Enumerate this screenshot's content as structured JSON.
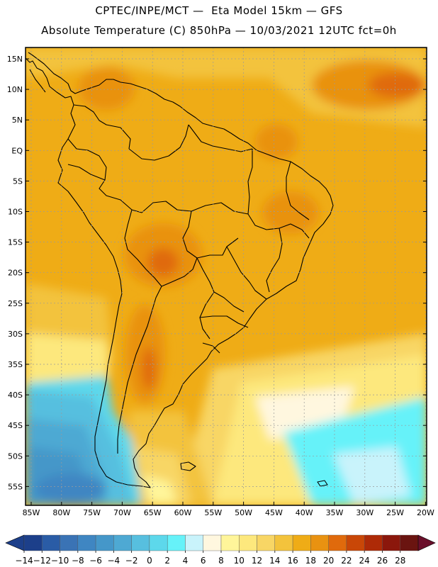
{
  "header": {
    "title_line1": "CPTEC/INPE/MCT —  Eta Model 15km — GFS",
    "title_line2": "Absolute Temperature (C) 850hPa — 10/03/2021 12UTC fct=0h"
  },
  "map": {
    "lat_labels": [
      "15N",
      "10N",
      "5N",
      "EQ",
      "5S",
      "10S",
      "15S",
      "20S",
      "25S",
      "30S",
      "35S",
      "40S",
      "45S",
      "50S",
      "55S"
    ],
    "lon_labels": [
      "85W",
      "80W",
      "75W",
      "70W",
      "65W",
      "60W",
      "55W",
      "50W",
      "45W",
      "40W",
      "35W",
      "30W",
      "25W",
      "20W"
    ]
  },
  "colorbar": {
    "labels": [
      "-14",
      "-12",
      "-10",
      "-8",
      "-6",
      "-4",
      "-2",
      "0",
      "2",
      "4",
      "6",
      "8",
      "10",
      "12",
      "14",
      "16",
      "18",
      "20",
      "22",
      "24",
      "26",
      "28"
    ],
    "colors": [
      "#1c3f8a",
      "#2a5ca6",
      "#3a73b5",
      "#3f86c2",
      "#4597c9",
      "#4ea9d3",
      "#57bfdf",
      "#5dd8eb",
      "#66f2f9",
      "#c9f3fb",
      "#fff7df",
      "#fff59a",
      "#fde87d",
      "#f8d665",
      "#f3c33c",
      "#efac16",
      "#e99211",
      "#e06a0c",
      "#c94707",
      "#ae2a07",
      "#8b170c",
      "#6a1410"
    ]
  }
}
